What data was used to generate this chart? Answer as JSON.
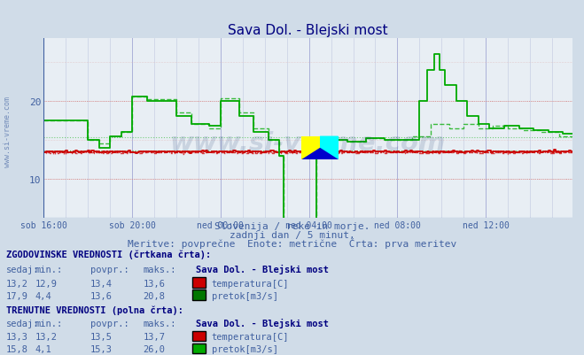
{
  "title": "Sava Dol. - Blejski most",
  "title_color": "#000080",
  "bg_color": "#d0dce8",
  "plot_bg_color": "#e8eef4",
  "grid_color_major": "#b0b8d0",
  "grid_color_minor": "#d8dce8",
  "grid_red_major": "#e08080",
  "grid_red_minor": "#f0c0c0",
  "xlabel_color": "#4060a0",
  "ylabel_color": "#4060a0",
  "watermark": "www.si-vreme.com",
  "subtitle1": "Slovenija / reke in morje.",
  "subtitle2": "zadnji dan / 5 minut.",
  "subtitle3": "Meritve: povprečne  Enote: metrične  Črta: prva meritev",
  "subtitle_color": "#4060a0",
  "xlabels": [
    "sob 16:00",
    "sob 20:00",
    "ned 00:00",
    "ned 04:00",
    "ned 08:00",
    "ned 12:00"
  ],
  "xticks_idx": [
    0,
    48,
    96,
    144,
    192,
    240
  ],
  "ylim": [
    5,
    28
  ],
  "yticks": [
    10,
    20
  ],
  "temp_color": "#cc0000",
  "flow_color": "#00aa00",
  "total_points": 288,
  "temp_hist_avg": 13.4,
  "temp_curr_avg": 13.5,
  "flow_hist_avg": 13.6,
  "flow_curr_avg": 15.3,
  "legend_section1": "ZGODOVINSKE VREDNOSTI (črtkana črta):",
  "legend_section2": "TRENUTNE VREDNOSTI (polna črta):",
  "hist_temp_sedaj": "13,2",
  "hist_temp_min": "12,9",
  "hist_temp_povpr": "13,4",
  "hist_temp_maks": "13,6",
  "hist_flow_sedaj": "17,9",
  "hist_flow_min": "4,4",
  "hist_flow_povpr": "13,6",
  "hist_flow_maks": "20,8",
  "curr_temp_sedaj": "13,3",
  "curr_temp_min": "13,2",
  "curr_temp_povpr": "13,5",
  "curr_temp_maks": "13,7",
  "curr_flow_sedaj": "15,8",
  "curr_flow_min": "4,1",
  "curr_flow_povpr": "15,3",
  "curr_flow_maks": "26,0",
  "temp_label": "temperatura[C]",
  "flow_label": "pretok[m3/s]",
  "station_name": "Sava Dol. - Blejski most",
  "marker_x_idx": 150,
  "marker_y_bot": 12.5,
  "marker_y_top": 15.5
}
